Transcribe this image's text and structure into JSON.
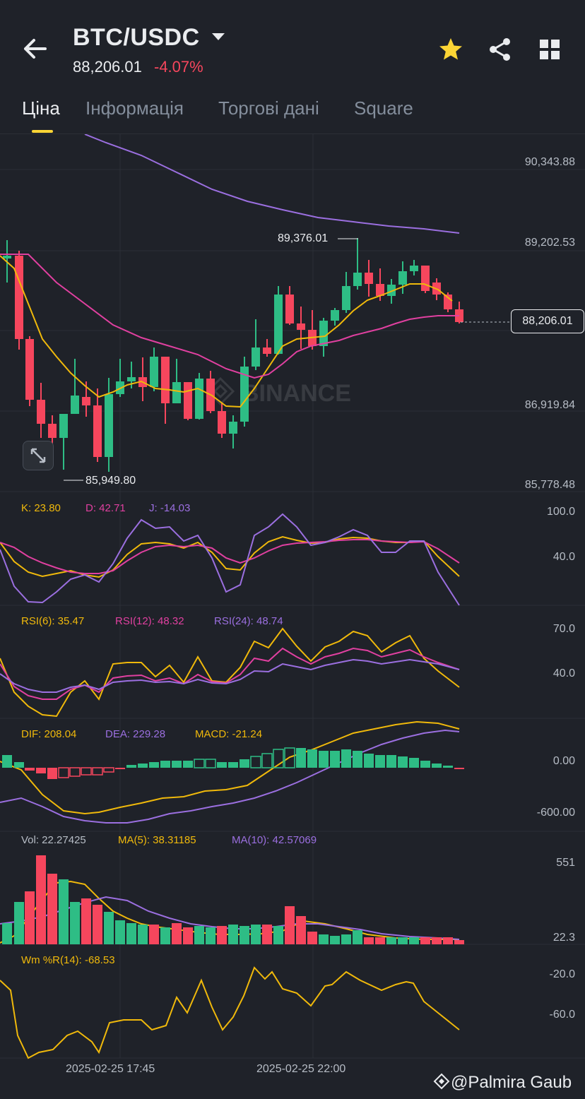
{
  "header": {
    "pair": "BTC/USDC",
    "price": "88,206.01",
    "change": "-4.07%",
    "icons": [
      "back-arrow-icon",
      "chevron-down-icon",
      "star-icon",
      "share-icon",
      "grid-icon"
    ]
  },
  "tabs": [
    {
      "label": "Ціна",
      "active": true
    },
    {
      "label": "Інформація",
      "active": false
    },
    {
      "label": "Торгові дані",
      "active": false
    },
    {
      "label": "Square",
      "active": false
    }
  ],
  "main_chart": {
    "price_axis": [
      "90,343.88",
      "89,202.53",
      "86,919.84",
      "85,778.48"
    ],
    "high_label": "89,376.01",
    "low_label": "85,949.80",
    "current_price": "88,206.01",
    "watermark": "BINANCE"
  },
  "kdj": {
    "k": "K: 23.80",
    "d": "D: 42.71",
    "j": "J: -14.03",
    "axis": [
      "100.0",
      "40.0"
    ]
  },
  "rsi": {
    "r6": "RSI(6): 35.47",
    "r12": "RSI(12): 48.32",
    "r24": "RSI(24): 48.74",
    "axis": [
      "70.0",
      "40.0"
    ]
  },
  "macd": {
    "dif": "DIF: 208.04",
    "dea": "DEA: 229.28",
    "macd": "MACD: -21.24",
    "axis": [
      "0.00",
      "-600.00"
    ]
  },
  "vol": {
    "vol": "Vol: 22.27425",
    "ma5": "MA(5): 38.31185",
    "ma10": "MA(10): 42.57069",
    "axis": [
      "551",
      "22.3"
    ]
  },
  "wr": {
    "label": "Wm %R(14): -68.53",
    "axis": [
      "-20.0",
      "-60.0"
    ]
  },
  "time_axis": [
    "2025-02-25 17:45",
    "2025-02-25 22:00"
  ],
  "watermark_user": "@Palmira Gaub",
  "colors": {
    "up": "#2ebd85",
    "down": "#f6465d",
    "ma7": "#f0b90b",
    "ma25": "#e040a0",
    "ma99": "#9b6fe0",
    "bg": "#1f2229"
  }
}
